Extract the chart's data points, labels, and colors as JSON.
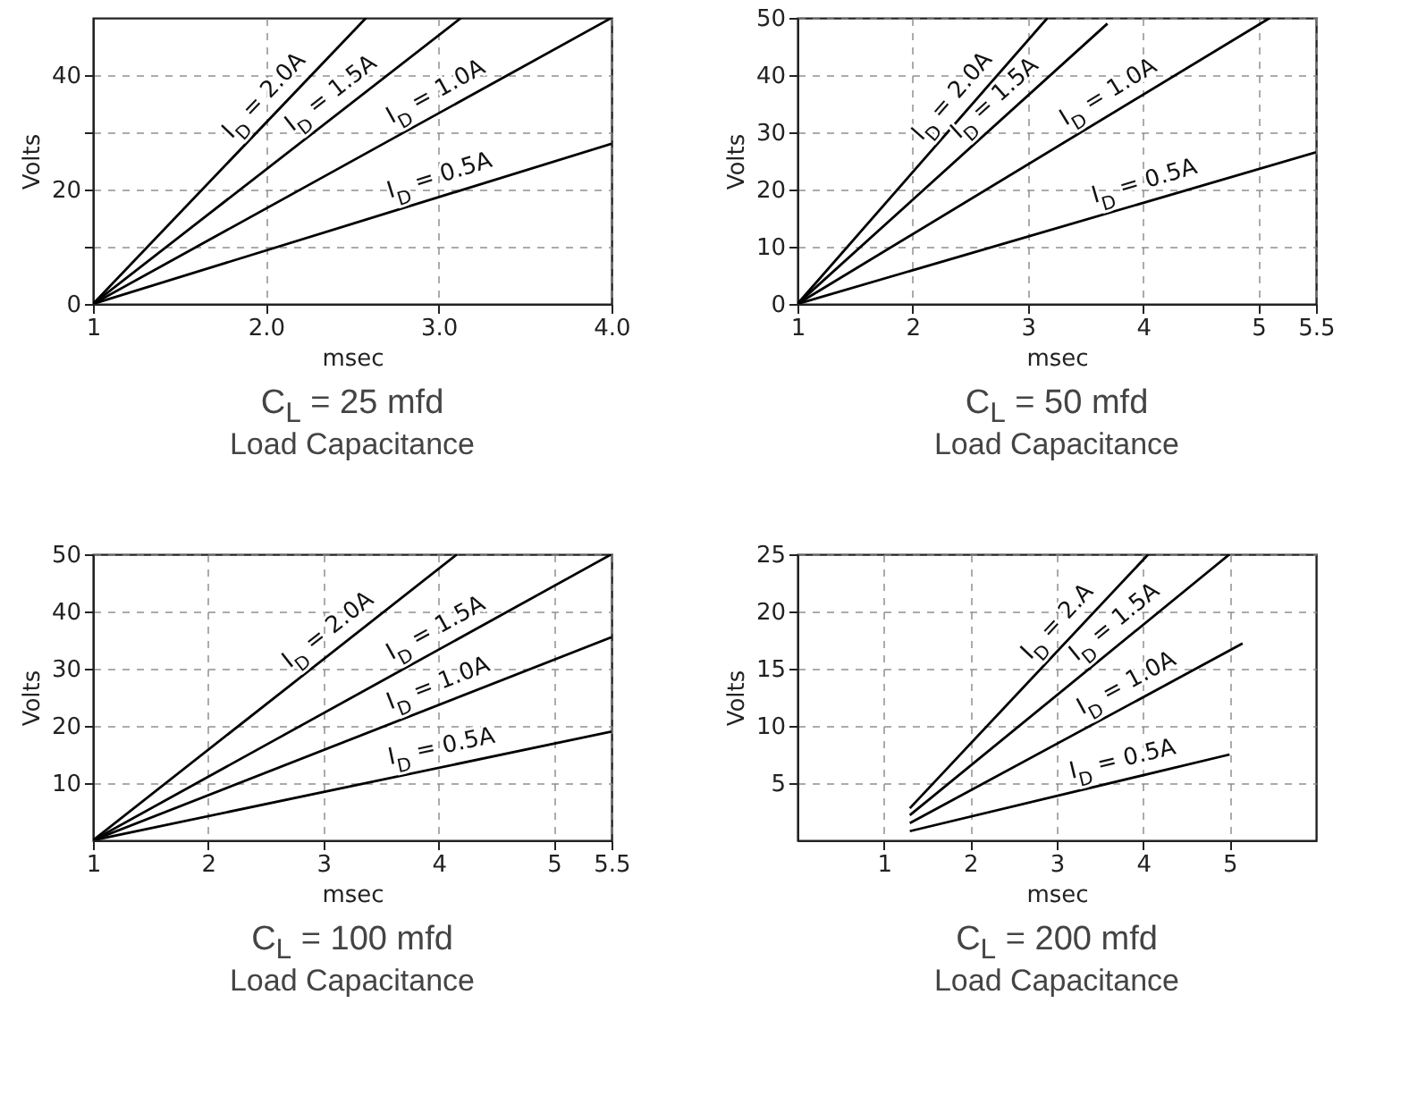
{
  "chart_data": [
    {
      "type": "line",
      "title": "C$_{L}$ = 25 mfd",
      "subtitle": "Load Capacitance",
      "xlabel": "msec",
      "ylabel": "Volts",
      "xlim": [
        1,
        4
      ],
      "xticks": [
        1,
        {
          "value": 2,
          "label": "2.0"
        },
        {
          "value": 3,
          "label": "3.0"
        },
        {
          "value": 4,
          "label": "4.0"
        }
      ],
      "ylim": [
        0,
        50
      ],
      "yticks": [
        0,
        {
          "value": 10,
          "label": null
        },
        20,
        {
          "value": 30,
          "label": null
        },
        40
      ],
      "grid": true,
      "series": [
        {
          "color": "#000000",
          "x": [
            1,
            2.58
          ],
          "values": [
            0,
            50
          ]
        },
        {
          "color": "#000000",
          "x": [
            1,
            3.13
          ],
          "values": [
            0,
            50
          ]
        },
        {
          "color": "#000000",
          "x": [
            1,
            4
          ],
          "values": [
            0,
            50
          ]
        },
        {
          "color": "#000000",
          "x": [
            1,
            4
          ],
          "values": [
            0,
            28
          ]
        }
      ],
      "annotations": [
        "I$_{D}$ = 2.0A",
        "I$_{D}$ = 1.5A",
        "I$_{D}$ = 1.0A",
        "I$_{D}$ = 0.5A"
      ]
    },
    {
      "type": "line",
      "title": "C$_{L}$ = 50 mfd",
      "subtitle": "Load Capacitance",
      "xlabel": "msec",
      "ylabel": "Volts",
      "xlim": [
        1,
        5.5
      ],
      "xticks": [
        1,
        2,
        3,
        4,
        5,
        5.5
      ],
      "ylim": [
        0,
        50
      ],
      "yticks": [
        0,
        10,
        20,
        30,
        40,
        50
      ],
      "grid": true,
      "series": [
        {
          "color": "#000000",
          "x": [
            1,
            3.17
          ],
          "values": [
            0,
            50
          ]
        },
        {
          "color": "#000000",
          "x": [
            1,
            3.69
          ],
          "values": [
            0,
            49
          ]
        },
        {
          "color": "#000000",
          "x": [
            1,
            5.1
          ],
          "values": [
            0,
            50
          ]
        },
        {
          "color": "#000000",
          "x": [
            1,
            5.5
          ],
          "values": [
            0,
            26.5
          ]
        }
      ],
      "annotations": [
        "I$_{D}$ = 2.0A",
        "I$_{D}$ = 1.5A",
        "I$_{D}$ = 1.0A",
        "I$_{D}$ = 0.5A"
      ]
    },
    {
      "type": "line",
      "title": "C$_{L}$ = 100 mfd",
      "subtitle": "Load Capacitance",
      "xlabel": "msec",
      "ylabel": "Volts",
      "xlim": [
        1,
        5.5
      ],
      "xticks": [
        1,
        2,
        3,
        4,
        5,
        5.5
      ],
      "ylim": [
        0,
        50
      ],
      "yticks": [
        10,
        20,
        30,
        40,
        50
      ],
      "grid": true,
      "series": [
        {
          "color": "#000000",
          "x": [
            1,
            4.16
          ],
          "values": [
            0,
            50
          ]
        },
        {
          "color": "#000000",
          "x": [
            1,
            5.5
          ],
          "values": [
            0,
            50
          ]
        },
        {
          "color": "#000000",
          "x": [
            1,
            5.5
          ],
          "values": [
            0,
            35.5
          ]
        },
        {
          "color": "#000000",
          "x": [
            1,
            5.5
          ],
          "values": [
            0,
            19
          ]
        }
      ],
      "annotations": [
        "I$_{D}$ = 2.0A",
        "I$_{D}$ = 1.5A",
        "I$_{D}$ = 1.0A",
        "I$_{D}$ = 0.5A"
      ]
    },
    {
      "type": "line",
      "title": "C$_{L}$ = 200 mfd",
      "subtitle": "Load Capacitance",
      "xlabel": "msec",
      "ylabel": "Volts",
      "xlim": [
        0,
        6
      ],
      "xticks": [
        1,
        2,
        3,
        4,
        5
      ],
      "ylim": [
        0,
        25
      ],
      "yticks": [
        5,
        10,
        15,
        20,
        25
      ],
      "grid": true,
      "series": [
        {
          "color": "#000000",
          "x": [
            1.3,
            4.06
          ],
          "values": [
            2.8,
            25
          ]
        },
        {
          "color": "#000000",
          "x": [
            1.3,
            5
          ],
          "values": [
            2.2,
            25
          ]
        },
        {
          "color": "#000000",
          "x": [
            1.3,
            5.15
          ],
          "values": [
            1.5,
            17.2
          ]
        },
        {
          "color": "#000000",
          "x": [
            1.3,
            5
          ],
          "values": [
            0.8,
            7.5
          ]
        }
      ],
      "annotations": [
        "I$_{D}$ = 2.A",
        "I$_{D}$ = 1.5A",
        "I$_{D}$ = 1.0A",
        "I$_{D}$ = 0.5A"
      ]
    }
  ]
}
